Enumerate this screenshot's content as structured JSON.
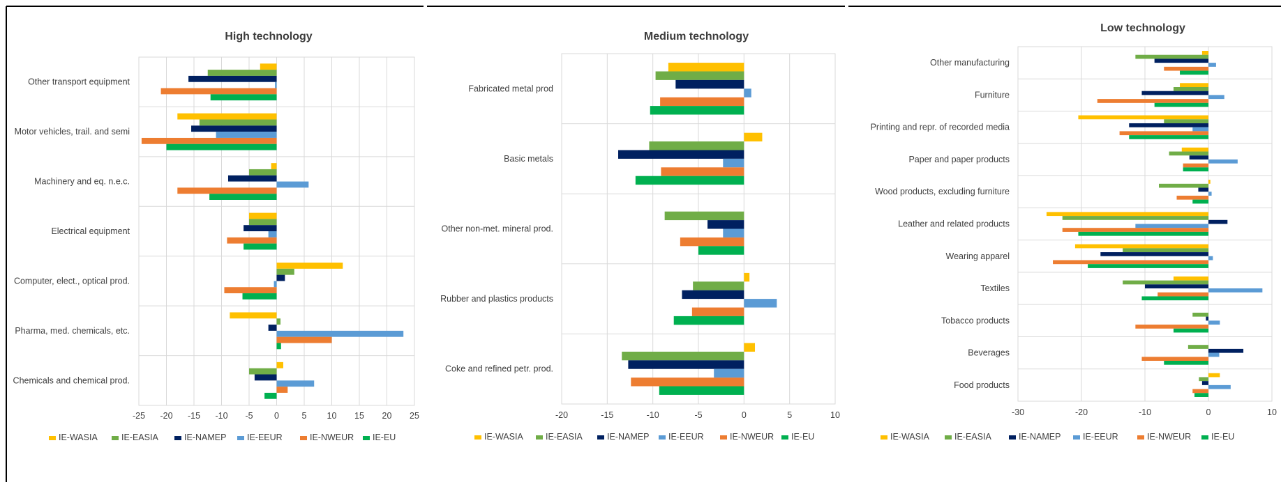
{
  "colors": {
    "IE-WASIA": "#FFC000",
    "IE-EASIA": "#70AD47",
    "IE-NAMEP": "#002060",
    "IE-EEUR": "#5B9BD5",
    "IE-NWEUR": "#ED7D31",
    "IE-EU": "#00B050"
  },
  "chart_data": [
    {
      "type": "bar",
      "orientation": "horizontal",
      "title": "High technology",
      "xlim": [
        -25,
        25
      ],
      "xticks": [
        -25,
        -20,
        -15,
        -10,
        -5,
        0,
        5,
        10,
        15,
        20,
        25
      ],
      "grid": true,
      "legend_position": "bottom",
      "categories": [
        "Other transport equipment",
        "Motor vehicles, trail. and semi",
        "Machinery and eq. n.e.c.",
        "Electrical equipment",
        "Computer, elect., optical prod.",
        "Pharma, med. chemicals, etc.",
        "Chemicals and chemical prod."
      ],
      "series": [
        {
          "name": "IE-WASIA",
          "values": [
            -3,
            -18,
            -1,
            -5,
            12,
            -8.5,
            1.2
          ]
        },
        {
          "name": "IE-EASIA",
          "values": [
            -12.5,
            -14,
            -5,
            -5,
            3.2,
            0.7,
            -5
          ]
        },
        {
          "name": "IE-NAMEP",
          "values": [
            -16,
            -15.5,
            -8.8,
            -6,
            1.5,
            -1.5,
            -4
          ]
        },
        {
          "name": "IE-EEUR",
          "values": [
            -0.3,
            -11,
            5.8,
            -1.5,
            -0.5,
            23,
            6.8
          ]
        },
        {
          "name": "IE-NWEUR",
          "values": [
            -21,
            -24.5,
            -18,
            -9,
            -9.5,
            10,
            2
          ]
        },
        {
          "name": "IE-EU",
          "values": [
            -12,
            -20,
            -12.2,
            -6,
            -6.2,
            0.8,
            -2.2
          ]
        }
      ]
    },
    {
      "type": "bar",
      "orientation": "horizontal",
      "title": "Medium technology",
      "xlim": [
        -20,
        10
      ],
      "xticks": [
        -20,
        -15,
        -10,
        -5,
        0,
        5,
        10
      ],
      "grid": true,
      "legend_position": "bottom",
      "categories": [
        "Fabricated metal prod",
        "Basic metals",
        "Other non-met. mineral prod.",
        "Rubber and plastics products",
        "Coke and refined petr. prod."
      ],
      "series": [
        {
          "name": "IE-WASIA",
          "values": [
            -8.3,
            2,
            0,
            0.6,
            1.2
          ]
        },
        {
          "name": "IE-EASIA",
          "values": [
            -9.7,
            -10.4,
            -8.7,
            -5.6,
            -13.4
          ]
        },
        {
          "name": "IE-NAMEP",
          "values": [
            -7.5,
            -13.8,
            -4,
            -6.8,
            -12.7
          ]
        },
        {
          "name": "IE-EEUR",
          "values": [
            0.8,
            -2.3,
            -2.3,
            3.6,
            -3.3
          ]
        },
        {
          "name": "IE-NWEUR",
          "values": [
            -9.2,
            -9.1,
            -7,
            -5.7,
            -12.4
          ]
        },
        {
          "name": "IE-EU",
          "values": [
            -10.3,
            -11.9,
            -5,
            -7.7,
            -9.3
          ]
        }
      ]
    },
    {
      "type": "bar",
      "orientation": "horizontal",
      "title": "Low technology",
      "xlim": [
        -30,
        10
      ],
      "xticks": [
        -30,
        -20,
        -10,
        0,
        10
      ],
      "grid": true,
      "legend_position": "bottom",
      "categories": [
        "Other manufacturing",
        "Furniture",
        "Printing and repr. of recorded media",
        "Paper and paper products",
        "Wood products, excluding furniture",
        "Leather and related products",
        "Wearing apparel",
        "Textiles",
        "Tobacco products",
        "Beverages",
        "Food products"
      ],
      "series": [
        {
          "name": "IE-WASIA",
          "values": [
            -1,
            -4.5,
            -20.5,
            -4.2,
            0.3,
            -25.5,
            -21,
            -5.5,
            0,
            0,
            1.8
          ]
        },
        {
          "name": "IE-EASIA",
          "values": [
            -11.5,
            -5.5,
            -7,
            -6.2,
            -7.8,
            -23,
            -13.5,
            -13.5,
            -2.5,
            -3.2,
            -1.5
          ]
        },
        {
          "name": "IE-NAMEP",
          "values": [
            -8.5,
            -10.5,
            -12.5,
            -3,
            -1.6,
            3,
            -17,
            -10,
            -0.4,
            5.5,
            -1
          ]
        },
        {
          "name": "IE-EEUR",
          "values": [
            1.2,
            2.5,
            -2.5,
            4.6,
            0.5,
            -11.5,
            0.7,
            8.5,
            1.8,
            1.7,
            3.5
          ]
        },
        {
          "name": "IE-NWEUR",
          "values": [
            -7,
            -17.5,
            -14,
            -4,
            -5,
            -23,
            -24.5,
            -8,
            -11.5,
            -10.5,
            -2.5
          ]
        },
        {
          "name": "IE-EU",
          "values": [
            -4.5,
            -8.5,
            -12.5,
            -4,
            -2.5,
            -20.5,
            -19,
            -10.5,
            -5.5,
            -7,
            -2.2
          ]
        }
      ]
    }
  ]
}
